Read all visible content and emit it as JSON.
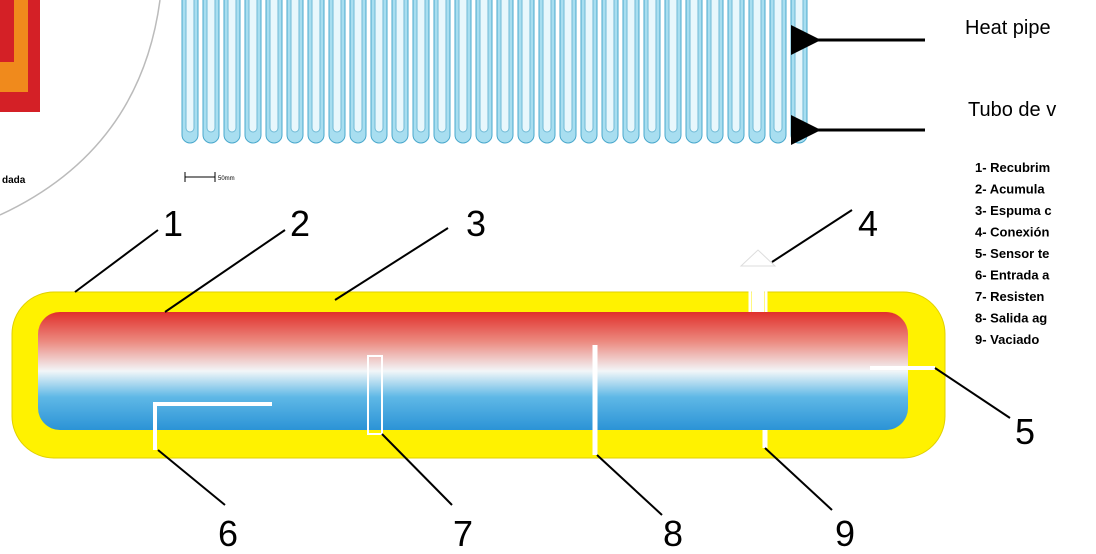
{
  "left_caption": "dada",
  "scale_label": "50mm",
  "labels": {
    "heat_pipe": "Heat pipe",
    "vacuum_tube": "Tubo de v"
  },
  "legend": [
    "1- Recubrim",
    "2- Acumula",
    "3- Espuma c",
    "4- Conexión",
    "5- Sensor te",
    "6- Entrada a",
    "7- Resisten",
    "8- Salida ag",
    "9- Vaciado"
  ],
  "callouts": [
    "1",
    "2",
    "3",
    "4",
    "5",
    "6",
    "7",
    "8",
    "9"
  ]
}
